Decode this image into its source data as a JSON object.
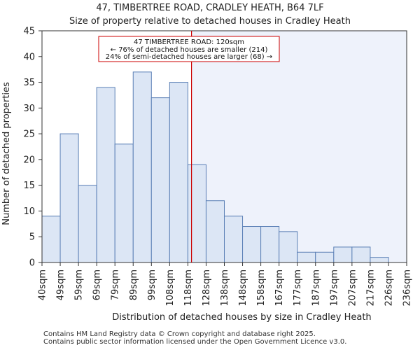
{
  "title": {
    "line1": "47, TIMBERTREE ROAD, CRADLEY HEATH, B64 7LF",
    "line2": "Size of property relative to detached houses in Cradley Heath"
  },
  "footer": {
    "line1": "Contains HM Land Registry data © Crown copyright and database right 2025.",
    "line2": "Contains public sector information licensed under the Open Government Licence v3.0."
  },
  "chart_data": {
    "type": "bar",
    "title": "Size of property relative to detached houses in Cradley Heath",
    "xlabel": "Distribution of detached houses by size in Cradley Heath",
    "ylabel": "Number of detached properties",
    "ylim": [
      0,
      45
    ],
    "yticks": [
      0,
      5,
      10,
      15,
      20,
      25,
      30,
      35,
      40,
      45
    ],
    "x_tick_labels": [
      "40sqm",
      "49sqm",
      "59sqm",
      "69sqm",
      "79sqm",
      "89sqm",
      "99sqm",
      "108sqm",
      "118sqm",
      "128sqm",
      "138sqm",
      "148sqm",
      "158sqm",
      "167sqm",
      "177sqm",
      "187sqm",
      "197sqm",
      "207sqm",
      "217sqm",
      "226sqm",
      "236sqm"
    ],
    "values": [
      9,
      25,
      15,
      34,
      23,
      37,
      32,
      35,
      19,
      12,
      9,
      7,
      7,
      6,
      2,
      2,
      3,
      3,
      1,
      0
    ],
    "property_marker": {
      "value_sqm": 120,
      "bin_position": 8.2,
      "color": "#cc0000"
    },
    "annotation": {
      "line1": "47 TIMBERTREE ROAD: 120sqm",
      "line2": "← 76% of detached houses are smaller (214)",
      "line3": "24% of semi-detached houses are larger (68) →"
    },
    "colors": {
      "bar_fill": "#dce6f5",
      "bar_stroke": "#5a7fb5",
      "shade": "#eef2fb"
    }
  }
}
